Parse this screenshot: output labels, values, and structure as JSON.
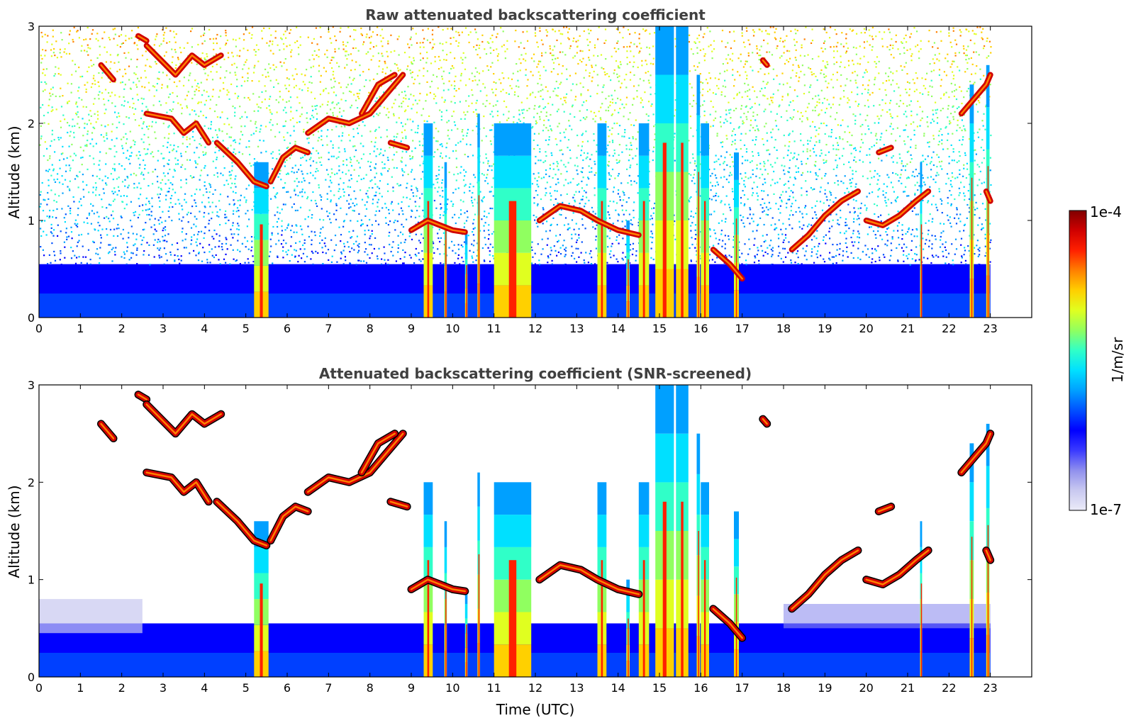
{
  "chart_data": [
    {
      "type": "heatmap",
      "title": "Raw attenuated backscattering coefficient",
      "xlabel": "",
      "ylabel": "Altitude (km)",
      "xlim": [
        0,
        24
      ],
      "ylim": [
        0,
        3
      ],
      "data_extent_x": [
        0,
        23
      ],
      "x_ticks": [
        "0",
        "1",
        "2",
        "3",
        "4",
        "5",
        "6",
        "7",
        "8",
        "9",
        "10",
        "11",
        "12",
        "13",
        "14",
        "15",
        "16",
        "17",
        "18",
        "19",
        "20",
        "21",
        "22",
        "23"
      ],
      "y_ticks": [
        "0",
        "1",
        "2",
        "3"
      ],
      "colorscale": "jet, log10",
      "color_range": [
        "1e-7",
        "1e-4"
      ],
      "background_color": "#ffffff",
      "screened": false
    },
    {
      "type": "heatmap",
      "title": "Attenuated backscattering coefficient (SNR-screened)",
      "xlabel": "Time (UTC)",
      "ylabel": "Altitude (km)",
      "xlim": [
        0,
        24
      ],
      "ylim": [
        0,
        3
      ],
      "data_extent_x": [
        0,
        23
      ],
      "x_ticks": [
        "0",
        "1",
        "2",
        "3",
        "4",
        "5",
        "6",
        "7",
        "8",
        "9",
        "10",
        "11",
        "12",
        "13",
        "14",
        "15",
        "16",
        "17",
        "18",
        "19",
        "20",
        "21",
        "22",
        "23"
      ],
      "y_ticks": [
        "0",
        "1",
        "2",
        "3"
      ],
      "colorscale": "jet, log10",
      "color_range": [
        "1e-7",
        "1e-4"
      ],
      "background_color": "#ffffff",
      "screened": true
    }
  ],
  "colorbar": {
    "max_label": "1e-4",
    "min_label": "1e-7",
    "unit_label": "1/m/sr",
    "colors": [
      "#ebebf8",
      "#c8c8f0",
      "#9090ee",
      "#3a3aff",
      "#0000ff",
      "#0050ff",
      "#00a0ff",
      "#00e0ff",
      "#30ffc8",
      "#90ff60",
      "#e0ff20",
      "#ffd000",
      "#ff8000",
      "#ff2000",
      "#d00000",
      "#800000"
    ]
  },
  "features": {
    "boundary_layer": {
      "top_km": 0.55,
      "value_class": "blue"
    },
    "precip_columns": [
      {
        "t": 5.2,
        "w": 0.35,
        "top": 1.6
      },
      {
        "t": 9.3,
        "w": 0.22,
        "top": 2.0
      },
      {
        "t": 9.8,
        "w": 0.06,
        "top": 1.6
      },
      {
        "t": 10.3,
        "w": 0.06,
        "top": 0.9
      },
      {
        "t": 10.6,
        "w": 0.06,
        "top": 2.1
      },
      {
        "t": 11.0,
        "w": 0.9,
        "top": 2.0
      },
      {
        "t": 13.5,
        "w": 0.22,
        "top": 2.0
      },
      {
        "t": 14.2,
        "w": 0.08,
        "top": 1.0
      },
      {
        "t": 14.5,
        "w": 0.25,
        "top": 2.0
      },
      {
        "t": 14.9,
        "w": 0.45,
        "top": 3.0
      },
      {
        "t": 15.4,
        "w": 0.3,
        "top": 3.0
      },
      {
        "t": 15.9,
        "w": 0.08,
        "top": 2.5
      },
      {
        "t": 16.0,
        "w": 0.2,
        "top": 2.0
      },
      {
        "t": 16.8,
        "w": 0.12,
        "top": 1.7
      },
      {
        "t": 21.3,
        "w": 0.05,
        "top": 1.6
      },
      {
        "t": 22.5,
        "w": 0.1,
        "top": 2.4
      },
      {
        "t": 22.9,
        "w": 0.08,
        "top": 2.6
      }
    ],
    "cloud_segments": [
      [
        [
          1.5,
          2.6
        ],
        [
          1.8,
          2.45
        ]
      ],
      [
        [
          2.4,
          2.9
        ],
        [
          2.6,
          2.85
        ]
      ],
      [
        [
          2.6,
          2.8
        ],
        [
          3.3,
          2.5
        ],
        [
          3.7,
          2.7
        ],
        [
          4.0,
          2.6
        ],
        [
          4.4,
          2.7
        ]
      ],
      [
        [
          2.6,
          2.1
        ],
        [
          3.2,
          2.05
        ],
        [
          3.5,
          1.9
        ],
        [
          3.8,
          2.0
        ],
        [
          4.1,
          1.8
        ]
      ],
      [
        [
          4.3,
          1.8
        ],
        [
          4.8,
          1.6
        ],
        [
          5.2,
          1.4
        ],
        [
          5.5,
          1.35
        ]
      ],
      [
        [
          5.6,
          1.4
        ],
        [
          5.9,
          1.65
        ],
        [
          6.2,
          1.75
        ],
        [
          6.5,
          1.7
        ]
      ],
      [
        [
          6.5,
          1.9
        ],
        [
          7.0,
          2.05
        ],
        [
          7.5,
          2.0
        ],
        [
          8.0,
          2.1
        ],
        [
          8.4,
          2.3
        ],
        [
          8.8,
          2.5
        ]
      ],
      [
        [
          7.8,
          2.1
        ],
        [
          8.2,
          2.4
        ],
        [
          8.6,
          2.5
        ]
      ],
      [
        [
          8.5,
          1.8
        ],
        [
          8.9,
          1.75
        ]
      ],
      [
        [
          9.0,
          0.9
        ],
        [
          9.4,
          1.0
        ],
        [
          9.7,
          0.95
        ],
        [
          10.0,
          0.9
        ],
        [
          10.3,
          0.88
        ]
      ],
      [
        [
          12.1,
          1.0
        ],
        [
          12.6,
          1.15
        ],
        [
          13.1,
          1.1
        ],
        [
          13.5,
          1.0
        ],
        [
          14.0,
          0.9
        ],
        [
          14.5,
          0.85
        ]
      ],
      [
        [
          16.3,
          0.7
        ],
        [
          16.7,
          0.55
        ],
        [
          17.0,
          0.4
        ]
      ],
      [
        [
          17.5,
          2.65
        ],
        [
          17.6,
          2.6
        ]
      ],
      [
        [
          18.2,
          0.7
        ],
        [
          18.6,
          0.85
        ],
        [
          19.0,
          1.05
        ],
        [
          19.4,
          1.2
        ],
        [
          19.8,
          1.3
        ]
      ],
      [
        [
          20.0,
          1.0
        ],
        [
          20.4,
          0.95
        ],
        [
          20.8,
          1.05
        ],
        [
          21.2,
          1.2
        ],
        [
          21.5,
          1.3
        ]
      ],
      [
        [
          20.3,
          1.7
        ],
        [
          20.6,
          1.75
        ]
      ],
      [
        [
          22.3,
          2.1
        ],
        [
          22.6,
          2.25
        ],
        [
          22.9,
          2.4
        ],
        [
          23.0,
          2.5
        ]
      ],
      [
        [
          22.9,
          1.3
        ],
        [
          23.0,
          1.2
        ]
      ]
    ]
  }
}
